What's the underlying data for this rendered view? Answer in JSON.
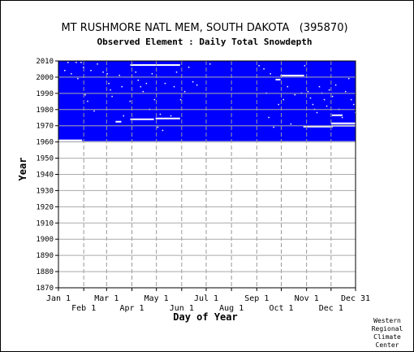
{
  "chart_data": {
    "type": "heatmap",
    "title": "MT RUSHMORE NATL MEM, SOUTH DAKOTA   (395870)",
    "subtitle": "Observed Element : Daily Total Snowdepth",
    "xlabel": "Day of Year",
    "ylabel": "Year",
    "x_tick_labels_row1": [
      "Jan 1",
      "Mar 1",
      "May 1",
      "Jul 1",
      "Sep 1",
      "Nov 1",
      "Dec 31"
    ],
    "x_tick_labels_row2": [
      "Feb 1",
      "Apr 1",
      "Jun 1",
      "Aug 1",
      "Oct 1",
      "Dec 1"
    ],
    "x_ticks_row1_doy": [
      1,
      60,
      121,
      182,
      244,
      305,
      365
    ],
    "x_ticks_row2_doy": [
      32,
      91,
      152,
      213,
      274,
      335
    ],
    "xlim": [
      1,
      365
    ],
    "ylim": [
      1870,
      2010
    ],
    "y_ticks": [
      1870,
      1880,
      1890,
      1900,
      1910,
      1920,
      1930,
      1940,
      1950,
      1960,
      1970,
      1980,
      1990,
      2000,
      2010
    ],
    "grid": true,
    "data_color": "#0000ff",
    "observed_period": {
      "start_year": 1960.5,
      "end_year": 2010,
      "start_doy": 1,
      "end_doy": 365
    },
    "missing_segments": [
      {
        "year": 1961,
        "doy_start": 1,
        "doy_end": 30
      },
      {
        "year": 2007.5,
        "doy_start": 89,
        "doy_end": 150
      },
      {
        "year": 2001,
        "doy_start": 273,
        "doy_end": 302
      },
      {
        "year": 1998.5,
        "doy_start": 267,
        "doy_end": 273
      },
      {
        "year": 1974,
        "doy_start": 89,
        "doy_end": 118
      },
      {
        "year": 1974.5,
        "doy_start": 120,
        "doy_end": 150
      },
      {
        "year": 1972.5,
        "doy_start": 71,
        "doy_end": 78
      },
      {
        "year": 1969.5,
        "doy_start": 301,
        "doy_end": 337
      },
      {
        "year": 1970,
        "doy_start": 335,
        "doy_end": 365
      },
      {
        "year": 1971.5,
        "doy_start": 335,
        "doy_end": 365
      },
      {
        "year": 1976.5,
        "doy_start": 336,
        "doy_end": 349
      }
    ],
    "missing_days": [
      [
        12,
        2009
      ],
      [
        22,
        2009
      ],
      [
        28,
        2009
      ],
      [
        31,
        2006
      ],
      [
        40,
        2004
      ],
      [
        48,
        2008
      ],
      [
        55,
        2003
      ],
      [
        60,
        2002
      ],
      [
        62,
        1996
      ],
      [
        64,
        1992
      ],
      [
        66,
        1988
      ],
      [
        75,
        2001
      ],
      [
        78,
        1994
      ],
      [
        80,
        1976
      ],
      [
        88,
        1985
      ],
      [
        95,
        2003
      ],
      [
        98,
        1998
      ],
      [
        101,
        1994
      ],
      [
        104,
        1991
      ],
      [
        108,
        1996
      ],
      [
        112,
        1980
      ],
      [
        115,
        2002
      ],
      [
        118,
        1986
      ],
      [
        122,
        1969
      ],
      [
        125,
        1977
      ],
      [
        128,
        1967
      ],
      [
        131,
        1996
      ],
      [
        138,
        1976
      ],
      [
        142,
        1994
      ],
      [
        145,
        2003
      ],
      [
        150,
        1986
      ],
      [
        155,
        1991
      ],
      [
        160,
        2006
      ],
      [
        165,
        1997
      ],
      [
        170,
        1995
      ],
      [
        186,
        2008
      ],
      [
        246,
        2007
      ],
      [
        252,
        2005
      ],
      [
        255,
        1990
      ],
      [
        258,
        1975
      ],
      [
        260,
        2002
      ],
      [
        264,
        1969
      ],
      [
        270,
        1983
      ],
      [
        276,
        1986
      ],
      [
        281,
        1994
      ],
      [
        285,
        1971
      ],
      [
        290,
        1989
      ],
      [
        298,
        1990
      ],
      [
        302,
        2007
      ],
      [
        306,
        1991
      ],
      [
        309,
        1987
      ],
      [
        312,
        1983
      ],
      [
        314,
        1980
      ],
      [
        317,
        1978
      ],
      [
        320,
        1994
      ],
      [
        323,
        1990
      ],
      [
        326,
        1986
      ],
      [
        329,
        1982
      ],
      [
        332,
        1992
      ],
      [
        336,
        1988
      ],
      [
        340,
        1995
      ],
      [
        344,
        1980
      ],
      [
        348,
        1975
      ],
      [
        352,
        1991
      ],
      [
        356,
        1999
      ],
      [
        359,
        1986
      ],
      [
        362,
        1983
      ],
      [
        364,
        1978
      ],
      [
        8,
        2004
      ],
      [
        16,
        2002
      ],
      [
        24,
        1999
      ],
      [
        33,
        1989
      ],
      [
        36,
        1985
      ],
      [
        44,
        1979
      ]
    ],
    "credit": [
      "Western",
      "Regional",
      "Climate",
      "Center"
    ]
  }
}
